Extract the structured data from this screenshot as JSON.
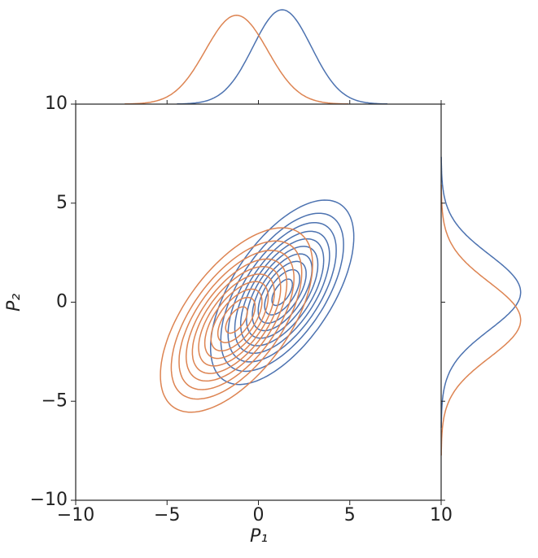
{
  "chart_data": {
    "type": "kde-joint",
    "x_label": "P₁",
    "y_label": "P₂",
    "xlim": [
      -10,
      10
    ],
    "ylim": [
      -10,
      10
    ],
    "xticks": [
      {
        "value": -10,
        "label": "−10"
      },
      {
        "value": -5,
        "label": "−5"
      },
      0,
      5,
      10
    ],
    "yticks": [
      {
        "value": -10,
        "label": "−10"
      },
      {
        "value": -5,
        "label": "−5"
      },
      0,
      5,
      10
    ],
    "contour_levels": [
      0.35,
      0.6,
      0.82,
      1.02,
      1.22,
      1.42,
      1.62,
      1.85,
      2.1,
      2.45
    ],
    "series": [
      {
        "color": "#4c72b0",
        "mean": [
          1.3,
          0.5
        ],
        "std": [
          1.6,
          1.9
        ],
        "corr": 0.6
      },
      {
        "color": "#dd8452",
        "mean": [
          -1.2,
          -0.9
        ],
        "std": [
          1.7,
          1.9
        ],
        "corr": 0.6
      }
    ]
  }
}
